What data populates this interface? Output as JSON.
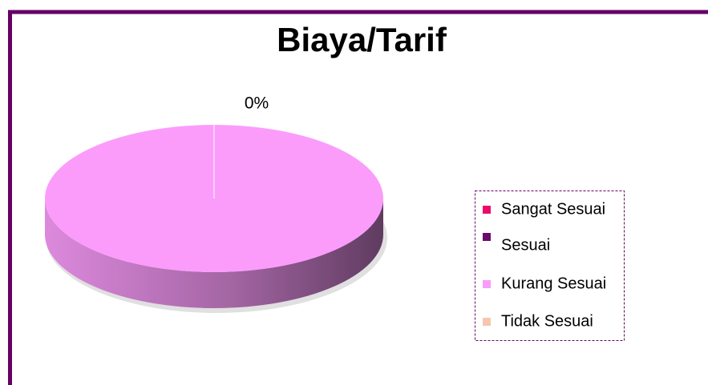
{
  "chart_data": {
    "type": "pie3d",
    "title": "Biaya/Tarif",
    "categories": [
      "Sangat Sesuai",
      "Sesuai",
      "Kurang Sesuai",
      "Tidak Sesuai"
    ],
    "values": [
      0,
      0,
      100,
      0
    ],
    "value_labels": [
      "0%",
      null,
      null,
      null
    ],
    "colors": [
      "#ee0a6a",
      "#6a0a6a",
      "#fb9cfb",
      "#f6c6b0"
    ],
    "legend": "right"
  }
}
